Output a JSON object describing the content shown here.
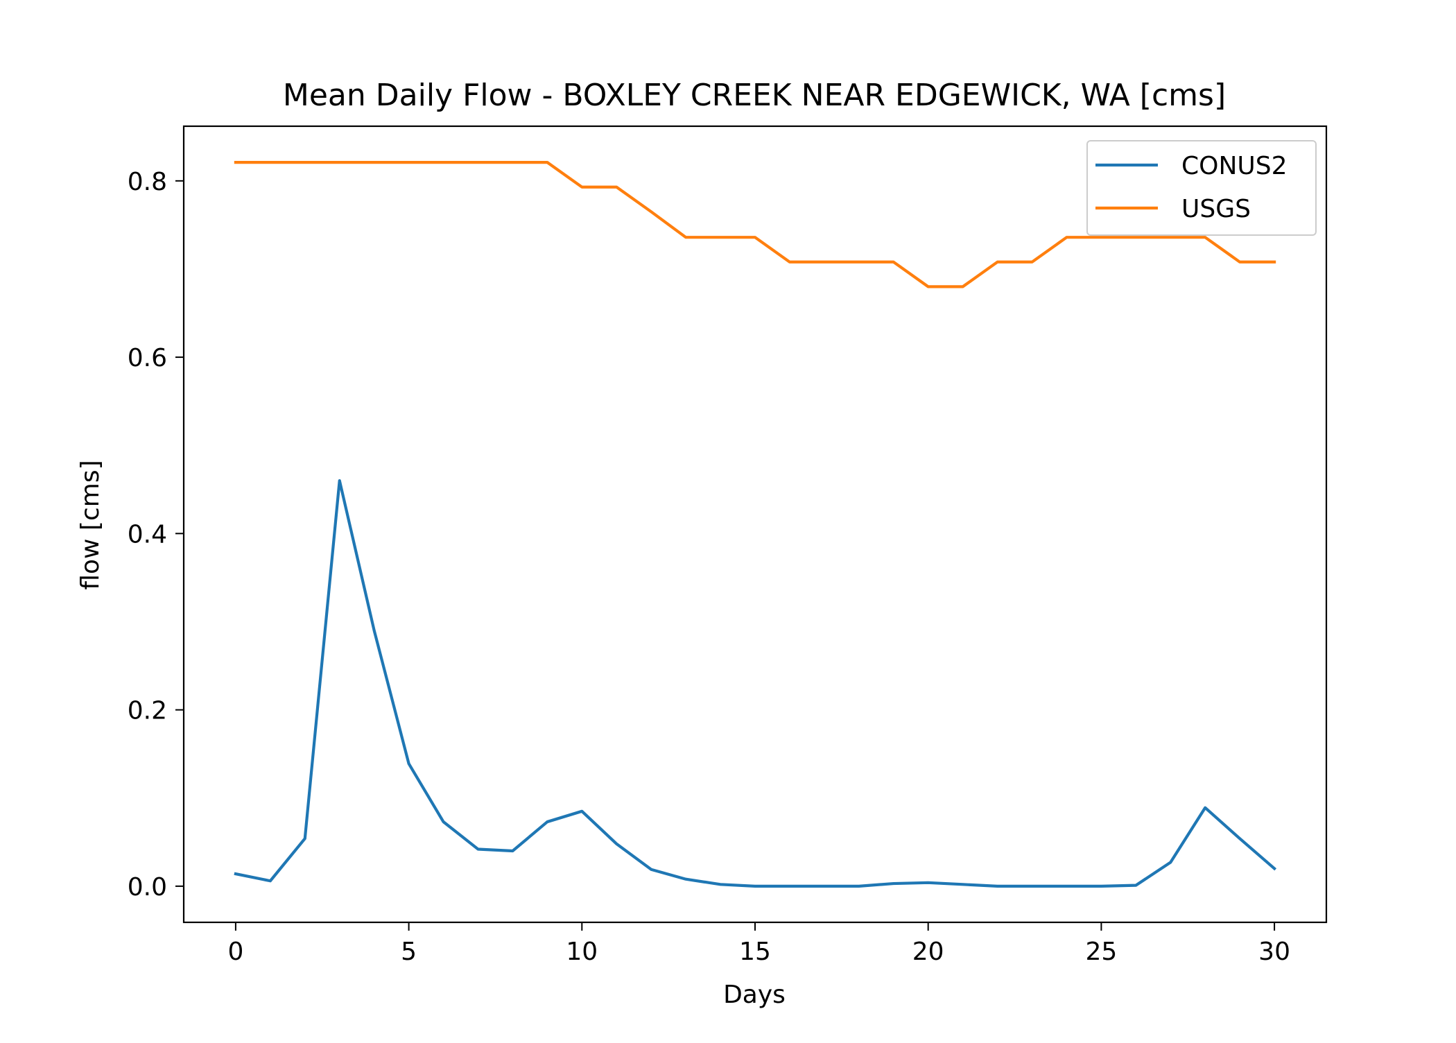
{
  "chart_data": {
    "type": "line",
    "title": "Mean Daily Flow - BOXLEY CREEK NEAR EDGEWICK, WA [cms]",
    "xlabel": "Days",
    "ylabel": "flow [cms]",
    "xlim": [
      -1.5,
      31.5
    ],
    "ylim": [
      -0.041,
      0.862
    ],
    "xticks": [
      0,
      5,
      10,
      15,
      20,
      25,
      30
    ],
    "yticks": [
      0.0,
      0.2,
      0.4,
      0.6,
      0.8
    ],
    "xtick_labels": [
      "0",
      "5",
      "10",
      "15",
      "20",
      "25",
      "30"
    ],
    "ytick_labels": [
      "0.0",
      "0.2",
      "0.4",
      "0.6",
      "0.8"
    ],
    "grid": false,
    "legend_position": "top-right",
    "x": [
      0,
      1,
      2,
      3,
      4,
      5,
      6,
      7,
      8,
      9,
      10,
      11,
      12,
      13,
      14,
      15,
      16,
      17,
      18,
      19,
      20,
      21,
      22,
      23,
      24,
      25,
      26,
      27,
      28,
      29,
      30
    ],
    "series": [
      {
        "name": "CONUS2",
        "color": "#1f77b4",
        "values": [
          0.014,
          0.006,
          0.054,
          0.46,
          0.29,
          0.139,
          0.073,
          0.042,
          0.04,
          0.073,
          0.085,
          0.048,
          0.019,
          0.008,
          0.002,
          0.0,
          0.0,
          0.0,
          0.0,
          0.003,
          0.004,
          0.002,
          0.0,
          0.0,
          0.0,
          0.0,
          0.001,
          0.027,
          0.089,
          0.054,
          0.02
        ]
      },
      {
        "name": "USGS",
        "color": "#ff7f0e",
        "values": [
          0.821,
          0.821,
          0.821,
          0.821,
          0.821,
          0.821,
          0.821,
          0.821,
          0.821,
          0.821,
          0.793,
          0.793,
          0.765,
          0.736,
          0.736,
          0.736,
          0.708,
          0.708,
          0.708,
          0.708,
          0.68,
          0.68,
          0.708,
          0.708,
          0.736,
          0.736,
          0.736,
          0.736,
          0.736,
          0.708,
          0.708
        ]
      }
    ]
  }
}
